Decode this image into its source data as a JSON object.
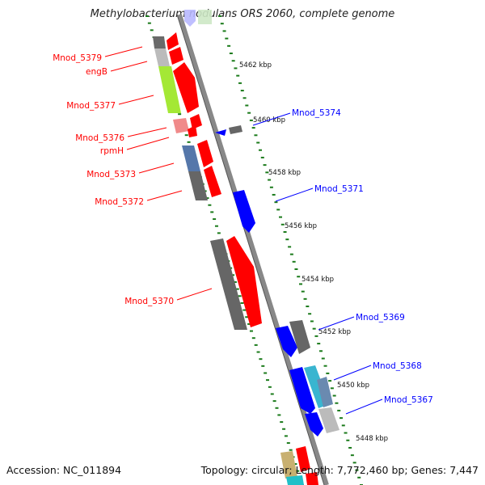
{
  "title": "Methylobacterium nodulans ORS 2060, complete genome",
  "accession": "Accession: NC_011894",
  "summary": "Topology: circular; Length: 7,772,460 bp; Genes: 7,447",
  "colors": {
    "forward": "#ff0000",
    "reverse": "#0000ff",
    "backbone": "#888888",
    "tick": "#1a7a1a"
  },
  "kbp_labels": [
    "5462 kbp",
    "5460 kbp",
    "5458 kbp",
    "5456 kbp",
    "5454 kbp",
    "5452 kbp",
    "5450 kbp",
    "5448 kbp"
  ],
  "gene_labels_left": [
    "Mnod_5379",
    "engB",
    "Mnod_5377",
    "Mnod_5376",
    "rpmH",
    "Mnod_5373",
    "Mnod_5372",
    "Mnod_5370"
  ],
  "gene_labels_right": [
    "Mnod_5374",
    "Mnod_5371",
    "Mnod_5369",
    "Mnod_5368",
    "Mnod_5367"
  ]
}
